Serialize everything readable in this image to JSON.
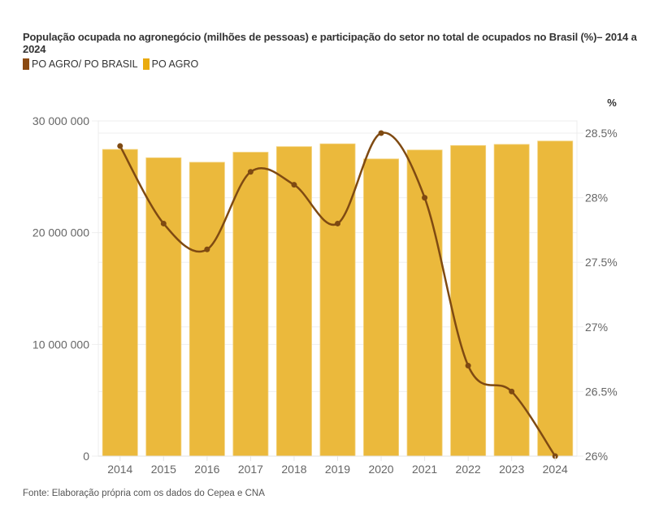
{
  "chart_data": {
    "type": "bar",
    "combo": "bar+line (dual axis)",
    "title": "População ocupada no agronegócio (milhões de pessoas) e participação do setor no total de ocupados no Brasil (%)– 2014 a 2024",
    "categories": [
      "2014",
      "2015",
      "2016",
      "2017",
      "2018",
      "2019",
      "2020",
      "2021",
      "2022",
      "2023",
      "2024"
    ],
    "series": [
      {
        "name": "PO AGRO/ PO BRASIL",
        "type": "line",
        "axis": "right",
        "color": "#7f4a12",
        "unit": "%",
        "values": [
          28.4,
          27.8,
          27.6,
          28.2,
          28.1,
          27.8,
          28.5,
          28.0,
          26.7,
          26.5,
          26.0
        ]
      },
      {
        "name": "PO AGRO",
        "type": "bar",
        "axis": "left",
        "color": "#ebb93c",
        "swatch_color": "#eaab0f",
        "values": [
          27450000,
          26700000,
          26300000,
          27200000,
          27700000,
          27950000,
          26600000,
          27400000,
          27800000,
          27900000,
          28200000
        ]
      }
    ],
    "left_axis": {
      "ylim": [
        0,
        30000000
      ],
      "ticks": [
        0,
        10000000,
        20000000,
        30000000
      ],
      "tick_labels": [
        "0",
        "10 000 000",
        "20 000 000",
        "30 000 000"
      ]
    },
    "right_axis": {
      "label": "%",
      "ylim": [
        26,
        28.5
      ],
      "ticks": [
        26,
        26.5,
        27,
        27.5,
        28,
        28.5
      ],
      "tick_labels": [
        "26%",
        "26.5%",
        "27%",
        "27.5%",
        "28%",
        "28.5%"
      ]
    },
    "xlabel": "",
    "ylabel": "",
    "grid": true,
    "legend_position": "top-left"
  },
  "legend": [
    {
      "label": "PO AGRO/ PO BRASIL",
      "color": "#8b4a12"
    },
    {
      "label": "PO AGRO",
      "color": "#eaab0f"
    }
  ],
  "source": "Fonte: Elaboração própria com os dados do Cepea e CNA"
}
